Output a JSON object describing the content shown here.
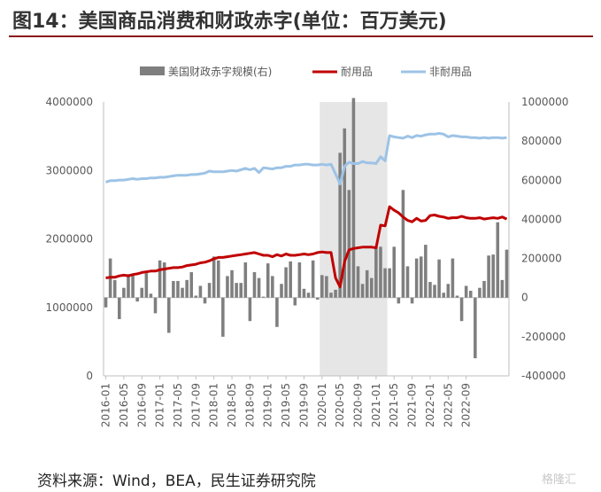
{
  "title": "图14：美国商品消费和财政赤字(单位：百万美元)",
  "source": "资料来源：Wind，BEA，民生证券研究院",
  "watermark": "格隆汇",
  "colors": {
    "bar": "#7f7f7f",
    "durable": "#c00000",
    "nondurable": "#9dc3e6",
    "shade": "#e6e6e6",
    "title_rule": "#8b1a1a"
  },
  "chart_data": {
    "type": "bar+line",
    "legend": {
      "position": "top",
      "entries": [
        "美国财政赤字规模(右)",
        "耐用品",
        "非耐用品"
      ]
    },
    "x_tick_labels": [
      "2016-01",
      "2016-05",
      "2016-09",
      "2017-01",
      "2017-05",
      "2017-09",
      "2018-01",
      "2018-05",
      "2018-09",
      "2019-01",
      "2019-05",
      "2019-09",
      "2020-01",
      "2020-05",
      "2020-09",
      "2021-01",
      "2021-05",
      "2021-09",
      "2022-01",
      "2022-05",
      "2022-09"
    ],
    "x_start": "2016-01",
    "left_axis": {
      "min": 0,
      "max": 4000000,
      "ticks": [
        "0",
        "1000000",
        "2000000",
        "3000000",
        "4000000"
      ]
    },
    "right_axis": {
      "min": -400000,
      "max": 1000000,
      "ticks": [
        "-400000",
        "-200000",
        "0",
        "200000",
        "400000",
        "600000",
        "800000",
        "1000000"
      ]
    },
    "shaded_region": {
      "start": "2020-01",
      "end": "2021-03"
    },
    "series": [
      {
        "name": "美国财政赤字规模(右)",
        "kind": "bar",
        "axis": "right",
        "values": [
          -50000,
          200000,
          90000,
          -110000,
          50000,
          120000,
          120000,
          -20000,
          50000,
          125000,
          20000,
          -80000,
          190000,
          180000,
          -180000,
          85000,
          85000,
          50000,
          90000,
          130000,
          10000,
          60000,
          -30000,
          75000,
          210000,
          190000,
          -200000,
          110000,
          140000,
          75000,
          75000,
          180000,
          -120000,
          130000,
          100000,
          5000,
          175000,
          110000,
          -150000,
          70000,
          155000,
          185000,
          -40000,
          180000,
          45000,
          25000,
          190000,
          -10000,
          115000,
          110000,
          25000,
          40000,
          740000,
          865000,
          550000,
          1020000,
          160000,
          70000,
          140000,
          100000,
          260000,
          260000,
          150000,
          150000,
          260000,
          -30000,
          550000,
          160000,
          -30000,
          200000,
          210000,
          270000,
          80000,
          65000,
          195000,
          25000,
          70000,
          200000,
          10000,
          -120000,
          60000,
          35000,
          -310000,
          50000,
          85000,
          215000,
          220000,
          385000,
          90000,
          245000
        ]
      },
      {
        "name": "耐用品",
        "kind": "line",
        "axis": "left",
        "values": [
          1430000,
          1440000,
          1440000,
          1460000,
          1470000,
          1460000,
          1480000,
          1490000,
          1510000,
          1520000,
          1530000,
          1530000,
          1550000,
          1560000,
          1570000,
          1580000,
          1580000,
          1590000,
          1610000,
          1620000,
          1630000,
          1650000,
          1660000,
          1680000,
          1710000,
          1730000,
          1730000,
          1740000,
          1750000,
          1760000,
          1770000,
          1780000,
          1790000,
          1800000,
          1780000,
          1760000,
          1760000,
          1740000,
          1770000,
          1750000,
          1780000,
          1760000,
          1760000,
          1770000,
          1780000,
          1770000,
          1780000,
          1800000,
          1810000,
          1800000,
          1800000,
          1430000,
          1300000,
          1670000,
          1840000,
          1860000,
          1870000,
          1880000,
          1880000,
          1880000,
          1870000,
          2200000,
          2190000,
          2470000,
          2420000,
          2380000,
          2320000,
          2270000,
          2250000,
          2300000,
          2260000,
          2270000,
          2340000,
          2350000,
          2330000,
          2320000,
          2300000,
          2310000,
          2310000,
          2330000,
          2310000,
          2300000,
          2300000,
          2310000,
          2290000,
          2300000,
          2310000,
          2300000,
          2320000,
          2290000
        ]
      },
      {
        "name": "非耐用品",
        "kind": "line",
        "axis": "left",
        "values": [
          2830000,
          2850000,
          2850000,
          2860000,
          2860000,
          2870000,
          2880000,
          2870000,
          2880000,
          2880000,
          2890000,
          2890000,
          2900000,
          2900000,
          2910000,
          2920000,
          2930000,
          2930000,
          2930000,
          2940000,
          2940000,
          2950000,
          2960000,
          2990000,
          2980000,
          2980000,
          2980000,
          2990000,
          3000000,
          2990000,
          3010000,
          3030000,
          3010000,
          3030000,
          2970000,
          3040000,
          3030000,
          3020000,
          3040000,
          3040000,
          3060000,
          3060000,
          3080000,
          3080000,
          3090000,
          3090000,
          3080000,
          3080000,
          3090000,
          3080000,
          3090000,
          2950000,
          2800000,
          3060000,
          3120000,
          3100000,
          3100000,
          3130000,
          3110000,
          3110000,
          3100000,
          3200000,
          3140000,
          3510000,
          3490000,
          3480000,
          3470000,
          3500000,
          3480000,
          3510000,
          3500000,
          3520000,
          3530000,
          3530000,
          3540000,
          3530000,
          3490000,
          3510000,
          3500000,
          3490000,
          3490000,
          3480000,
          3480000,
          3470000,
          3480000,
          3470000,
          3480000,
          3480000,
          3470000,
          3480000
        ]
      }
    ]
  }
}
